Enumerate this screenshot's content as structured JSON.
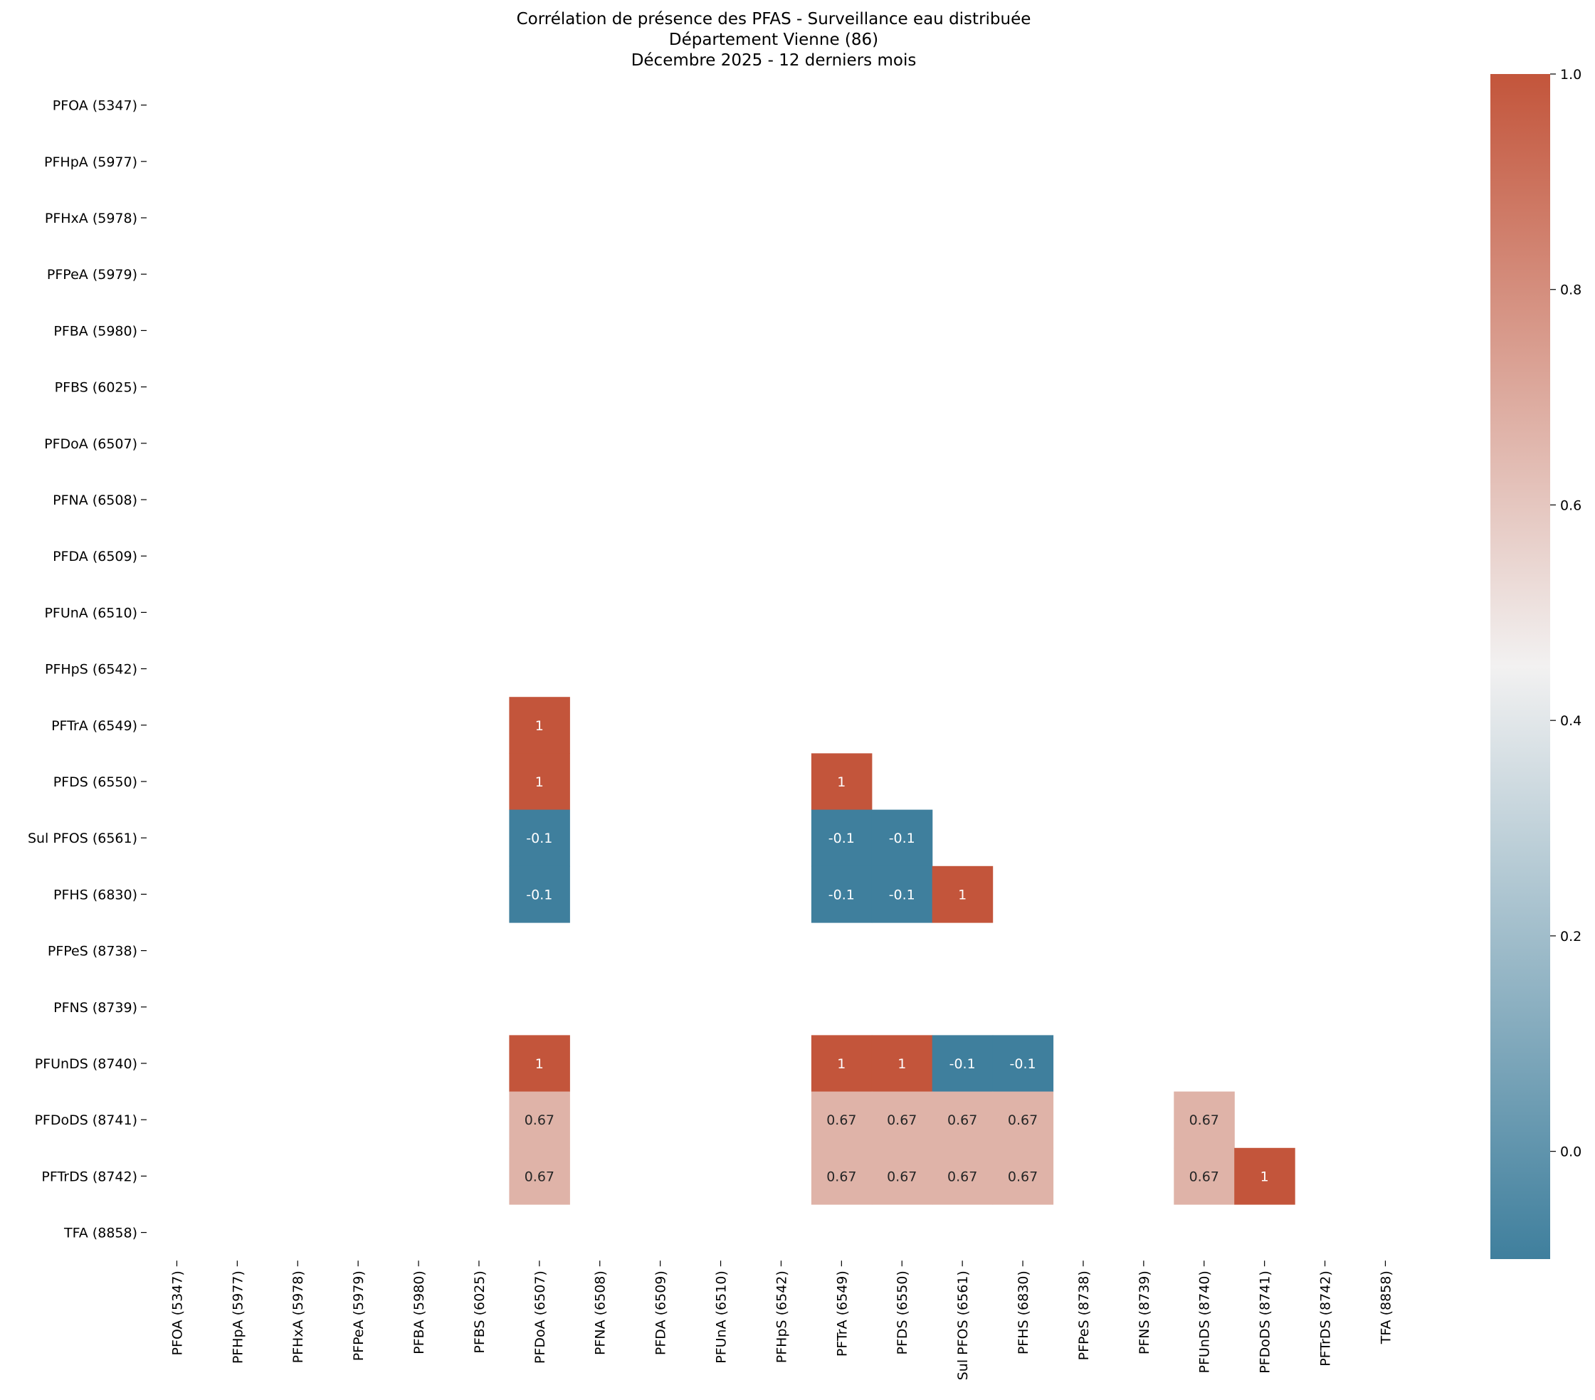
{
  "chart_data": {
    "type": "heatmap",
    "title": [
      "Corrélation de présence des PFAS - Surveillance eau distribuée",
      "Département Vienne (86)",
      "Décembre 2025 - 12 derniers mois"
    ],
    "labels": [
      "PFOA (5347)",
      "PFHpA (5977)",
      "PFHxA (5978)",
      "PFPeA (5979)",
      "PFBA (5980)",
      "PFBS (6025)",
      "PFDoA (6507)",
      "PFNA (6508)",
      "PFDA (6509)",
      "PFUnA (6510)",
      "PFHpS (6542)",
      "PFTrA (6549)",
      "PFDS (6550)",
      "Sul PFOS (6561)",
      "PFHS (6830)",
      "PFPeS (8738)",
      "PFNS (8739)",
      "PFUnDS (8740)",
      "PFDoDS (8741)",
      "PFTrDS (8742)",
      "TFA (8858)"
    ],
    "cells": [
      {
        "row": 11,
        "col": 6,
        "value": 1,
        "label": "1"
      },
      {
        "row": 12,
        "col": 6,
        "value": 1,
        "label": "1"
      },
      {
        "row": 12,
        "col": 11,
        "value": 1,
        "label": "1"
      },
      {
        "row": 13,
        "col": 6,
        "value": -0.1,
        "label": "-0.1"
      },
      {
        "row": 13,
        "col": 11,
        "value": -0.1,
        "label": "-0.1"
      },
      {
        "row": 13,
        "col": 12,
        "value": -0.1,
        "label": "-0.1"
      },
      {
        "row": 14,
        "col": 6,
        "value": -0.1,
        "label": "-0.1"
      },
      {
        "row": 14,
        "col": 11,
        "value": -0.1,
        "label": "-0.1"
      },
      {
        "row": 14,
        "col": 12,
        "value": -0.1,
        "label": "-0.1"
      },
      {
        "row": 14,
        "col": 13,
        "value": 1,
        "label": "1"
      },
      {
        "row": 17,
        "col": 6,
        "value": 1,
        "label": "1"
      },
      {
        "row": 17,
        "col": 11,
        "value": 1,
        "label": "1"
      },
      {
        "row": 17,
        "col": 12,
        "value": 1,
        "label": "1"
      },
      {
        "row": 17,
        "col": 13,
        "value": -0.1,
        "label": "-0.1"
      },
      {
        "row": 17,
        "col": 14,
        "value": -0.1,
        "label": "-0.1"
      },
      {
        "row": 18,
        "col": 6,
        "value": 0.67,
        "label": "0.67"
      },
      {
        "row": 18,
        "col": 11,
        "value": 0.67,
        "label": "0.67"
      },
      {
        "row": 18,
        "col": 12,
        "value": 0.67,
        "label": "0.67"
      },
      {
        "row": 18,
        "col": 13,
        "value": 0.67,
        "label": "0.67"
      },
      {
        "row": 18,
        "col": 14,
        "value": 0.67,
        "label": "0.67"
      },
      {
        "row": 18,
        "col": 17,
        "value": 0.67,
        "label": "0.67"
      },
      {
        "row": 19,
        "col": 6,
        "value": 0.67,
        "label": "0.67"
      },
      {
        "row": 19,
        "col": 11,
        "value": 0.67,
        "label": "0.67"
      },
      {
        "row": 19,
        "col": 12,
        "value": 0.67,
        "label": "0.67"
      },
      {
        "row": 19,
        "col": 13,
        "value": 0.67,
        "label": "0.67"
      },
      {
        "row": 19,
        "col": 14,
        "value": 0.67,
        "label": "0.67"
      },
      {
        "row": 19,
        "col": 17,
        "value": 0.67,
        "label": "0.67"
      },
      {
        "row": 19,
        "col": 18,
        "value": 1,
        "label": "1"
      }
    ],
    "colorbar": {
      "vmin": -0.1,
      "vmax": 1.0,
      "ticks": [
        0.0,
        0.2,
        0.4,
        0.6,
        0.8,
        1.0
      ],
      "tick_labels": [
        "0.0",
        "0.2",
        "0.4",
        "0.6",
        "0.8",
        "1.0"
      ],
      "colors": [
        "#3f7f9d",
        "#f2f1f1",
        "#c3553b"
      ]
    },
    "grid": false
  }
}
